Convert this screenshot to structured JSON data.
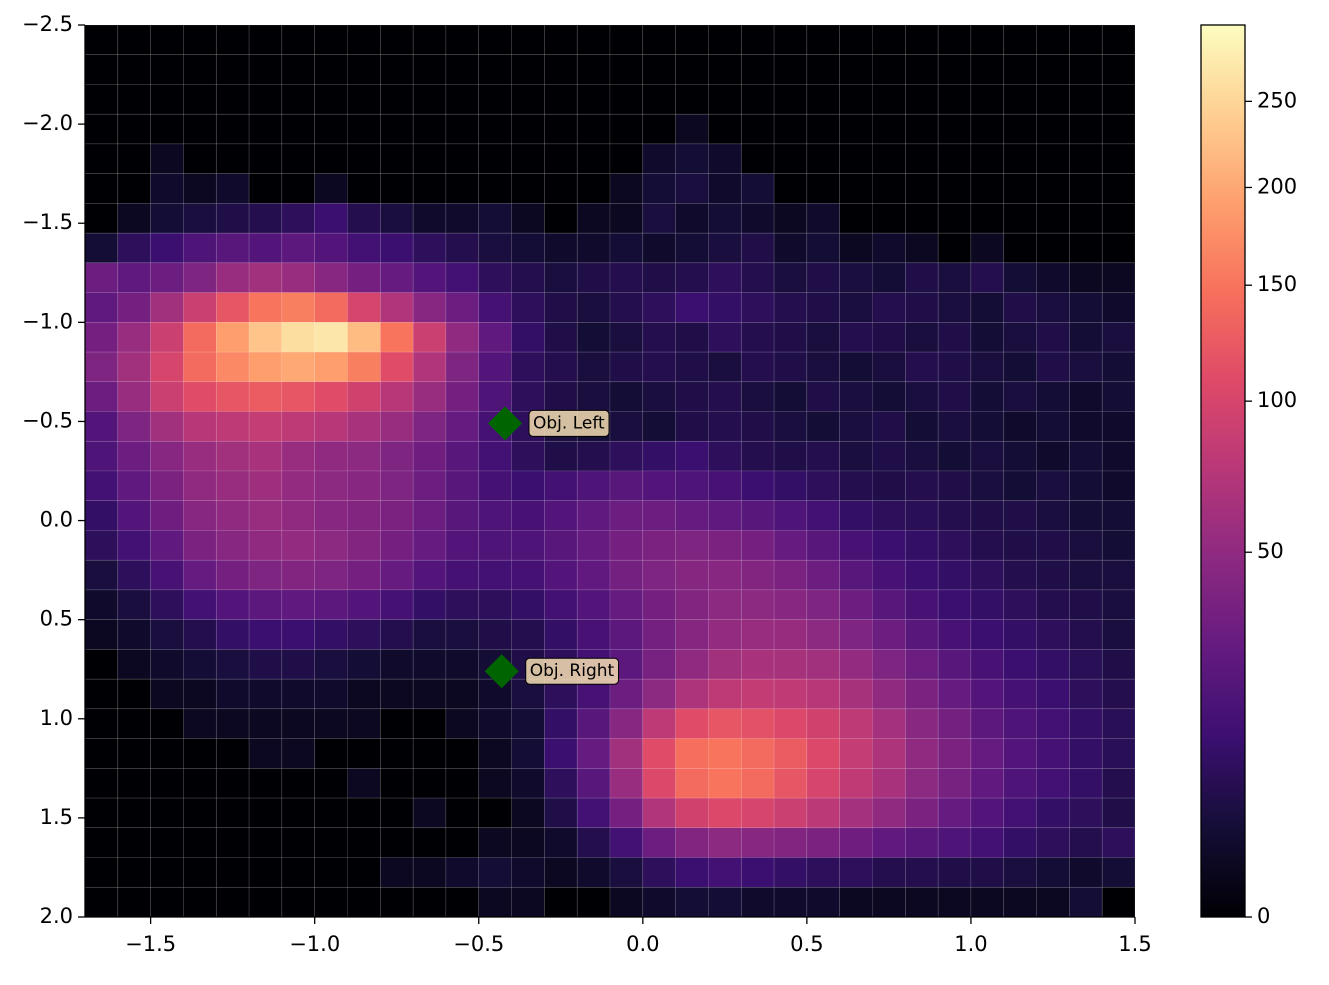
{
  "chart_data": {
    "type": "hist2d",
    "x_edges": [
      -1.7,
      -1.6,
      -1.5,
      -1.4,
      -1.3,
      -1.2,
      -1.1,
      -1.0,
      -0.9,
      -0.8,
      -0.7,
      -0.6,
      -0.5,
      -0.4,
      -0.3,
      -0.2,
      -0.1,
      0.0,
      0.1,
      0.2,
      0.3,
      0.4,
      0.5,
      0.6,
      0.7,
      0.8,
      0.9,
      1.0,
      1.1,
      1.2,
      1.3,
      1.4,
      1.5
    ],
    "y_edges": [
      -2.5,
      -2.35,
      -2.2,
      -2.05,
      -1.9,
      -1.75,
      -1.6,
      -1.45,
      -1.3,
      -1.15,
      -1.0,
      -0.85,
      -0.7,
      -0.55,
      -0.4,
      -0.25,
      -0.1,
      0.05,
      0.2,
      0.35,
      0.5,
      0.65,
      0.8,
      0.95,
      1.1,
      1.25,
      1.4,
      1.55,
      1.7,
      1.85,
      2.0
    ],
    "values": [
      [
        0,
        0,
        0,
        0,
        0,
        0,
        0,
        0,
        0,
        0,
        0,
        0,
        0,
        0,
        0,
        0,
        0,
        0,
        0,
        0,
        0,
        0,
        0,
        0,
        0,
        0,
        0,
        0,
        0,
        0,
        0,
        0
      ],
      [
        0,
        0,
        0,
        0,
        0,
        0,
        0,
        0,
        0,
        0,
        0,
        0,
        0,
        0,
        0,
        0,
        0,
        0,
        0,
        0,
        0,
        0,
        0,
        0,
        0,
        0,
        0,
        0,
        0,
        0,
        0,
        0
      ],
      [
        0,
        0,
        0,
        0,
        0,
        0,
        0,
        0,
        0,
        0,
        0,
        0,
        0,
        0,
        0,
        0,
        0,
        0,
        0,
        0,
        0,
        0,
        0,
        0,
        0,
        0,
        0,
        0,
        0,
        0,
        0,
        0
      ],
      [
        0,
        0,
        0,
        0,
        0,
        0,
        0,
        0,
        0,
        0,
        0,
        0,
        0,
        0,
        0,
        0,
        0,
        0,
        1,
        0,
        0,
        0,
        0,
        0,
        0,
        0,
        0,
        0,
        0,
        0,
        0,
        0
      ],
      [
        0,
        0,
        1,
        0,
        0,
        0,
        0,
        0,
        0,
        0,
        0,
        0,
        0,
        0,
        0,
        0,
        0,
        2,
        3,
        2,
        0,
        0,
        0,
        0,
        0,
        0,
        0,
        0,
        0,
        0,
        0,
        0
      ],
      [
        0,
        0,
        2,
        1,
        2,
        0,
        0,
        1,
        0,
        0,
        0,
        0,
        0,
        0,
        0,
        0,
        1,
        3,
        4,
        2,
        3,
        0,
        0,
        0,
        0,
        0,
        0,
        0,
        0,
        0,
        0,
        0
      ],
      [
        0,
        1,
        3,
        4,
        5,
        6,
        8,
        12,
        6,
        4,
        2,
        2,
        3,
        1,
        0,
        1,
        1,
        4,
        2,
        3,
        2,
        1,
        2,
        0,
        0,
        0,
        0,
        0,
        0,
        0,
        0,
        0
      ],
      [
        3,
        8,
        12,
        18,
        22,
        20,
        24,
        20,
        14,
        12,
        8,
        6,
        4,
        3,
        2,
        2,
        3,
        2,
        3,
        4,
        5,
        2,
        3,
        1,
        2,
        1,
        0,
        1,
        0,
        0,
        0,
        0
      ],
      [
        30,
        25,
        30,
        40,
        55,
        60,
        55,
        45,
        35,
        28,
        20,
        14,
        8,
        6,
        4,
        5,
        6,
        5,
        6,
        8,
        6,
        4,
        5,
        4,
        3,
        5,
        4,
        6,
        3,
        2,
        1,
        1
      ],
      [
        25,
        35,
        60,
        90,
        120,
        150,
        160,
        140,
        100,
        70,
        45,
        30,
        15,
        8,
        5,
        4,
        6,
        8,
        12,
        10,
        8,
        6,
        5,
        4,
        6,
        5,
        4,
        3,
        5,
        4,
        3,
        2
      ],
      [
        35,
        55,
        90,
        140,
        190,
        230,
        260,
        270,
        220,
        150,
        90,
        50,
        25,
        10,
        5,
        3,
        4,
        6,
        5,
        8,
        6,
        5,
        4,
        6,
        5,
        4,
        5,
        3,
        4,
        5,
        3,
        4
      ],
      [
        40,
        60,
        100,
        140,
        170,
        190,
        200,
        190,
        160,
        110,
        70,
        40,
        20,
        8,
        6,
        4,
        5,
        6,
        5,
        4,
        6,
        5,
        4,
        3,
        4,
        6,
        5,
        4,
        3,
        5,
        4,
        3
      ],
      [
        30,
        55,
        90,
        110,
        120,
        125,
        120,
        110,
        95,
        75,
        55,
        35,
        18,
        8,
        5,
        4,
        3,
        4,
        5,
        6,
        4,
        3,
        5,
        4,
        3,
        4,
        5,
        3,
        4,
        3,
        2,
        3
      ],
      [
        20,
        40,
        60,
        75,
        80,
        85,
        80,
        75,
        65,
        55,
        40,
        28,
        15,
        8,
        4,
        3,
        4,
        3,
        5,
        6,
        5,
        4,
        3,
        4,
        5,
        3,
        4,
        3,
        2,
        3,
        2,
        2
      ],
      [
        18,
        30,
        45,
        55,
        60,
        65,
        55,
        50,
        48,
        40,
        32,
        22,
        14,
        8,
        5,
        6,
        8,
        10,
        12,
        8,
        6,
        5,
        6,
        4,
        5,
        4,
        3,
        4,
        3,
        2,
        3,
        2
      ],
      [
        14,
        25,
        38,
        50,
        55,
        58,
        52,
        48,
        45,
        40,
        30,
        22,
        15,
        12,
        14,
        18,
        22,
        20,
        18,
        16,
        12,
        10,
        8,
        6,
        5,
        6,
        5,
        4,
        3,
        4,
        3,
        2
      ],
      [
        10,
        20,
        32,
        45,
        50,
        55,
        50,
        45,
        42,
        38,
        30,
        22,
        18,
        16,
        20,
        25,
        30,
        30,
        28,
        25,
        22,
        18,
        14,
        10,
        8,
        7,
        6,
        5,
        5,
        4,
        3,
        3
      ],
      [
        8,
        14,
        25,
        38,
        45,
        50,
        52,
        48,
        42,
        35,
        28,
        20,
        18,
        18,
        22,
        28,
        35,
        38,
        40,
        38,
        35,
        28,
        22,
        16,
        12,
        10,
        8,
        6,
        5,
        5,
        4,
        3
      ],
      [
        4,
        8,
        16,
        28,
        35,
        40,
        42,
        40,
        35,
        28,
        20,
        15,
        14,
        15,
        20,
        26,
        34,
        40,
        44,
        45,
        42,
        38,
        30,
        22,
        16,
        12,
        10,
        8,
        6,
        5,
        4,
        4
      ],
      [
        2,
        4,
        8,
        14,
        20,
        24,
        25,
        24,
        20,
        15,
        10,
        8,
        8,
        10,
        14,
        20,
        28,
        35,
        42,
        48,
        48,
        45,
        40,
        30,
        22,
        16,
        12,
        10,
        8,
        6,
        5,
        4
      ],
      [
        1,
        2,
        4,
        6,
        10,
        12,
        12,
        10,
        8,
        6,
        4,
        4,
        5,
        6,
        10,
        16,
        24,
        34,
        44,
        52,
        55,
        54,
        48,
        40,
        30,
        22,
        16,
        12,
        10,
        8,
        6,
        4
      ],
      [
        0,
        1,
        2,
        3,
        4,
        5,
        5,
        4,
        3,
        2,
        2,
        2,
        3,
        5,
        8,
        14,
        24,
        36,
        50,
        60,
        65,
        64,
        60,
        52,
        40,
        30,
        22,
        16,
        12,
        10,
        7,
        5
      ],
      [
        0,
        0,
        1,
        1,
        2,
        2,
        2,
        2,
        1,
        1,
        1,
        1,
        2,
        4,
        8,
        16,
        30,
        48,
        68,
        80,
        84,
        82,
        75,
        64,
        50,
        38,
        28,
        20,
        15,
        12,
        8,
        6
      ],
      [
        0,
        0,
        0,
        1,
        1,
        1,
        1,
        1,
        1,
        0,
        0,
        1,
        2,
        3,
        10,
        22,
        45,
        80,
        110,
        120,
        115,
        105,
        95,
        80,
        62,
        46,
        34,
        24,
        18,
        14,
        10,
        7
      ],
      [
        0,
        0,
        0,
        0,
        0,
        1,
        1,
        0,
        0,
        0,
        0,
        0,
        1,
        3,
        12,
        28,
        60,
        110,
        145,
        150,
        140,
        125,
        105,
        85,
        68,
        50,
        38,
        28,
        20,
        15,
        10,
        7
      ],
      [
        0,
        0,
        0,
        0,
        0,
        0,
        0,
        0,
        1,
        0,
        0,
        0,
        1,
        2,
        8,
        22,
        55,
        105,
        140,
        150,
        140,
        120,
        100,
        82,
        65,
        48,
        36,
        26,
        18,
        14,
        10,
        6
      ],
      [
        0,
        0,
        0,
        0,
        0,
        0,
        0,
        0,
        0,
        0,
        1,
        0,
        0,
        1,
        5,
        14,
        35,
        70,
        95,
        105,
        100,
        90,
        78,
        62,
        50,
        38,
        28,
        20,
        14,
        10,
        8,
        5
      ],
      [
        0,
        0,
        0,
        0,
        0,
        0,
        0,
        0,
        0,
        0,
        0,
        0,
        1,
        1,
        2,
        6,
        14,
        30,
        42,
        48,
        45,
        42,
        38,
        32,
        26,
        22,
        18,
        14,
        10,
        8,
        6,
        8
      ],
      [
        0,
        0,
        0,
        0,
        0,
        0,
        0,
        0,
        0,
        1,
        1,
        2,
        3,
        2,
        1,
        2,
        4,
        8,
        12,
        14,
        12,
        10,
        8,
        8,
        6,
        6,
        5,
        5,
        4,
        3,
        2,
        3
      ],
      [
        0,
        0,
        0,
        0,
        0,
        0,
        0,
        0,
        0,
        0,
        0,
        0,
        1,
        1,
        0,
        0,
        1,
        2,
        3,
        3,
        2,
        2,
        2,
        1,
        1,
        1,
        1,
        1,
        1,
        1,
        3,
        0
      ]
    ],
    "colormap": "magma",
    "norm": "power",
    "gamma": 0.5,
    "clim": [
      0,
      299
    ],
    "xlim": [
      -1.7,
      1.5
    ],
    "ylim": [
      2.0,
      -2.5
    ],
    "xticks": [
      {
        "value": -1.5,
        "label": "−1.5"
      },
      {
        "value": -1.0,
        "label": "−1.0"
      },
      {
        "value": -0.5,
        "label": "−0.5"
      },
      {
        "value": 0.0,
        "label": "0.0"
      },
      {
        "value": 0.5,
        "label": "0.5"
      },
      {
        "value": 1.0,
        "label": "1.0"
      },
      {
        "value": 1.5,
        "label": "1.5"
      }
    ],
    "yticks": [
      {
        "value": -2.5,
        "label": "−2.5"
      },
      {
        "value": -2.0,
        "label": "−2.0"
      },
      {
        "value": -1.5,
        "label": "−1.5"
      },
      {
        "value": -1.0,
        "label": "−1.0"
      },
      {
        "value": -0.5,
        "label": "−0.5"
      },
      {
        "value": 0.0,
        "label": "0.0"
      },
      {
        "value": 0.5,
        "label": "0.5"
      },
      {
        "value": 1.0,
        "label": "1.0"
      },
      {
        "value": 1.5,
        "label": "1.5"
      },
      {
        "value": 2.0,
        "label": "2.0"
      }
    ],
    "colorbar_ticks": [
      0,
      50,
      100,
      150,
      200,
      250
    ],
    "markers": [
      {
        "x": -0.42,
        "y": -0.49,
        "label": "Obj. Left",
        "color": "#006400"
      },
      {
        "x": -0.43,
        "y": 0.76,
        "label": "Obj. Right",
        "color": "#006400"
      }
    ]
  }
}
